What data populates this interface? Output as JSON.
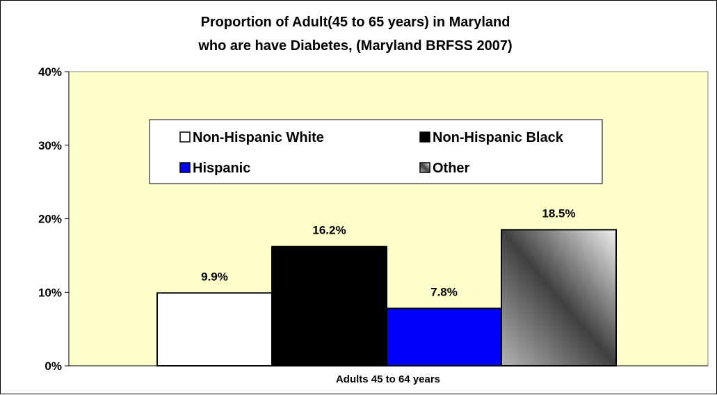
{
  "chart_data": {
    "type": "bar",
    "title_lines": [
      "Proportion of Adult(45 to 65 years) in Maryland",
      "who are have Diabetes,  (Maryland BRFSS 2007)"
    ],
    "categories": [
      "Adults 45 to 64 years"
    ],
    "xlabel": "",
    "ylabel": "",
    "ylim": [
      0,
      40
    ],
    "yticks": [
      "0%",
      "10%",
      "20%",
      "30%",
      "40%"
    ],
    "series": [
      {
        "name": "Non-Hispanic White",
        "values": [
          9.9
        ],
        "label": "9.9%",
        "color": "#ffffff"
      },
      {
        "name": "Non-Hispanic Black",
        "values": [
          16.2
        ],
        "label": "16.2%",
        "color": "#000000"
      },
      {
        "name": "Hispanic",
        "values": [
          7.8
        ],
        "label": "7.8%",
        "color": "#0000ff"
      },
      {
        "name": "Other",
        "values": [
          18.5
        ],
        "label": "18.5%",
        "color": "gradient-gray"
      }
    ],
    "plot_background": "#ffffcc",
    "legend_position": "inside-top",
    "grid": false
  }
}
